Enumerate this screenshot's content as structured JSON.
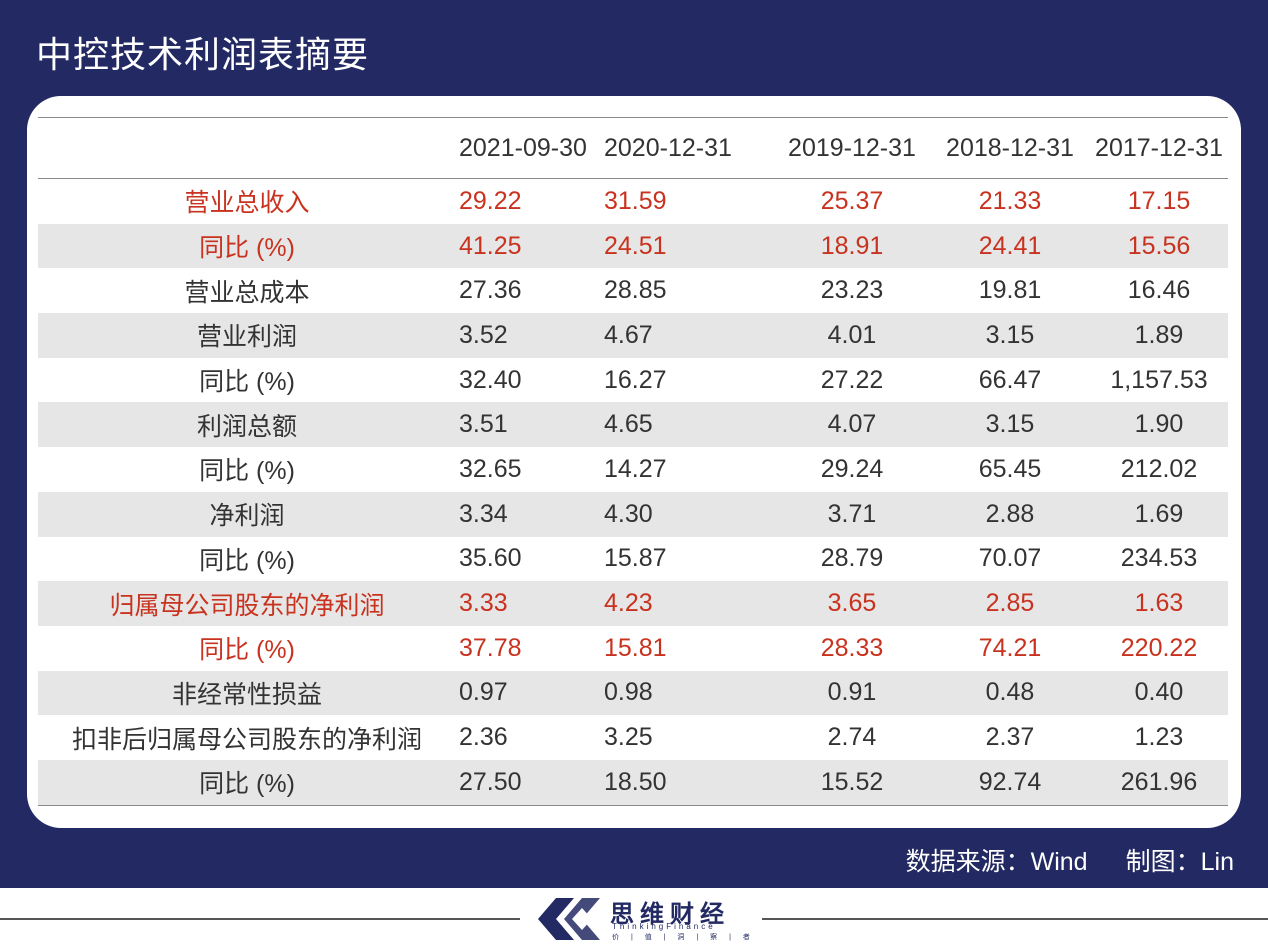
{
  "title": "中控技术利润表摘要",
  "header": {
    "label": "",
    "cols": [
      "2021-09-30",
      "2020-12-31",
      "2019-12-31",
      "2018-12-31",
      "2017-12-31"
    ]
  },
  "rows": [
    {
      "label": "营业总收入",
      "values": [
        "29.22",
        "31.59",
        "25.37",
        "21.33",
        "17.15"
      ]
    },
    {
      "label": "同比 (%)",
      "values": [
        "41.25",
        "24.51",
        "18.91",
        "24.41",
        "15.56"
      ]
    },
    {
      "label": "营业总成本",
      "values": [
        "27.36",
        "28.85",
        "23.23",
        "19.81",
        "16.46"
      ]
    },
    {
      "label": "营业利润",
      "values": [
        "3.52",
        "4.67",
        "4.01",
        "3.15",
        "1.89"
      ]
    },
    {
      "label": "同比 (%)",
      "values": [
        "32.40",
        "16.27",
        "27.22",
        "66.47",
        "1,157.53"
      ]
    },
    {
      "label": "利润总额",
      "values": [
        "3.51",
        "4.65",
        "4.07",
        "3.15",
        "1.90"
      ]
    },
    {
      "label": "同比 (%)",
      "values": [
        "32.65",
        "14.27",
        "29.24",
        "65.45",
        "212.02"
      ]
    },
    {
      "label": "净利润",
      "values": [
        "3.34",
        "4.30",
        "3.71",
        "2.88",
        "1.69"
      ]
    },
    {
      "label": "同比 (%)",
      "values": [
        "35.60",
        "15.87",
        "28.79",
        "70.07",
        "234.53"
      ]
    },
    {
      "label": "归属母公司股东的净利润",
      "values": [
        "3.33",
        "4.23",
        "3.65",
        "2.85",
        "1.63"
      ]
    },
    {
      "label": "同比 (%)",
      "values": [
        "37.78",
        "15.81",
        "28.33",
        "74.21",
        "220.22"
      ]
    },
    {
      "label": "非经常性损益",
      "values": [
        "0.97",
        "0.98",
        "0.91",
        "0.48",
        "0.40"
      ]
    },
    {
      "label": "扣非后归属母公司股东的净利润",
      "values": [
        "2.36",
        "3.25",
        "2.74",
        "2.37",
        "1.23"
      ]
    },
    {
      "label": "同比 (%)",
      "values": [
        "27.50",
        "18.50",
        "15.52",
        "92.74",
        "261.96"
      ]
    }
  ],
  "source": {
    "data_label": "数据来源",
    "data_value": "Wind",
    "chart_label": "制图",
    "chart_value": "Lin",
    "colon": "："
  },
  "logo": {
    "name": "思维财经",
    "english": "ThinkingFinance",
    "tagline": "价 | 值 | 洞 | 察 | 者"
  },
  "colors": {
    "panel": "#232a63",
    "highlight_text": "#c8321e",
    "shade_row": "#e6e6e6"
  }
}
